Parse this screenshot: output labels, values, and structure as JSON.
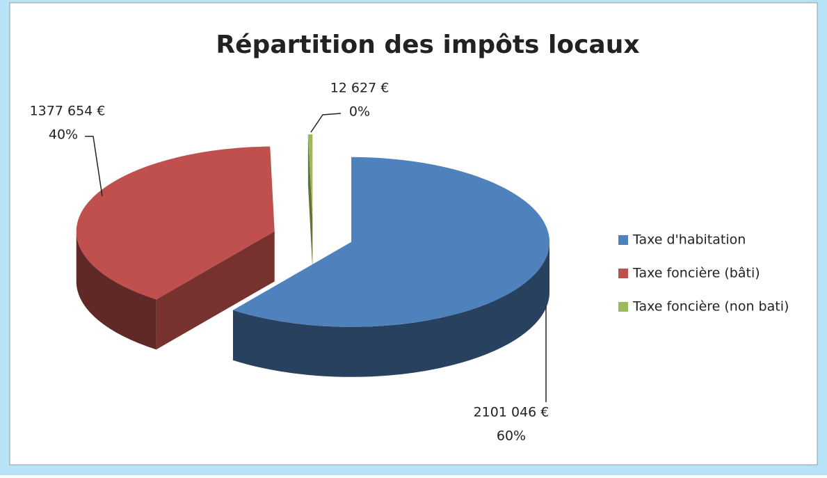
{
  "chart_data": {
    "type": "pie",
    "title": "Répartition des impôts locaux",
    "categories": [
      "Taxe d'habitation",
      "Taxe foncière (bâti)",
      "Taxe foncière (non bati)"
    ],
    "values": [
      2101046,
      1377654,
      12627
    ],
    "value_labels": [
      "2101 046 €",
      "1377 654 €",
      "12 627 €"
    ],
    "percent_labels": [
      "60%",
      "40%",
      "0%"
    ],
    "colors": [
      "#4f81bd",
      "#c0504d",
      "#9bbb59"
    ],
    "legend": "right"
  }
}
